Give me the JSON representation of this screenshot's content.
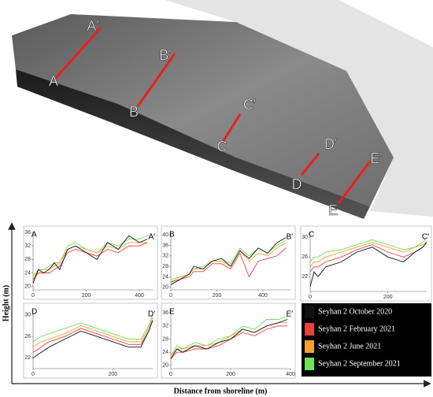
{
  "image_labels": [
    "A",
    "A′",
    "B",
    "B′",
    "C",
    "C′",
    "D",
    "D′",
    "E",
    "E′"
  ],
  "axes": {
    "y_label": "Height (m)",
    "x_label": "Distance from shoreline (m)"
  },
  "legend": [
    {
      "name": "Seyhan 2 October 2020",
      "color": "#111111"
    },
    {
      "name": "Seyhan 2 February 2021",
      "color": "#e8403a"
    },
    {
      "name": "Seyhan 2 June 2021",
      "color": "#f5a030"
    },
    {
      "name": "Seyhan 2 September 2021",
      "color": "#6ee05a"
    }
  ],
  "chart_data": [
    {
      "type": "line",
      "title": "A",
      "end_label": "A′",
      "x": [
        0,
        20,
        40,
        60,
        80,
        100,
        130,
        160,
        200,
        240,
        280,
        320,
        360,
        400,
        430
      ],
      "series": [
        {
          "values": [
            21,
            25,
            24,
            25,
            27,
            25,
            31,
            32,
            30,
            28,
            33,
            31,
            35,
            33,
            34
          ]
        },
        {
          "values": [
            22,
            24,
            24,
            24,
            25,
            26,
            30,
            31,
            30,
            29,
            31,
            30,
            32,
            32,
            33
          ]
        },
        {
          "values": [
            22,
            25,
            25,
            25,
            26,
            27,
            31,
            32,
            31,
            30,
            32,
            31,
            33,
            33,
            33
          ]
        },
        {
          "values": [
            23,
            25,
            25,
            26,
            27,
            27,
            32,
            33,
            31,
            30,
            33,
            32,
            34,
            34,
            35
          ]
        }
      ],
      "xlim": [
        0,
        450
      ],
      "xticks": [
        0,
        200,
        400
      ],
      "ylim": [
        19,
        36
      ],
      "yticks": [
        20,
        24,
        28,
        32,
        36
      ]
    },
    {
      "type": "line",
      "title": "B",
      "end_label": "B′",
      "x": [
        0,
        40,
        80,
        100,
        140,
        180,
        220,
        260,
        300,
        340,
        380,
        420,
        460,
        500
      ],
      "series": [
        {
          "values": [
            21,
            23,
            25,
            28,
            27,
            30,
            31,
            28,
            34,
            31,
            35,
            33,
            37,
            39
          ]
        },
        {
          "values": [
            22,
            23,
            24,
            26,
            26,
            29,
            29,
            27,
            33,
            24,
            30,
            31,
            32,
            35
          ]
        },
        {
          "values": [
            22,
            24,
            25,
            27,
            27,
            30,
            30,
            28,
            34,
            30,
            33,
            32,
            35,
            37
          ]
        },
        {
          "values": [
            23,
            24,
            25,
            27,
            28,
            30,
            31,
            29,
            35,
            32,
            35,
            33,
            36,
            38
          ]
        }
      ],
      "xlim": [
        0,
        520
      ],
      "xticks": [
        0,
        200,
        400
      ],
      "ylim": [
        19,
        41
      ],
      "yticks": [
        20,
        24,
        28,
        32,
        36,
        40
      ]
    },
    {
      "type": "line",
      "title": "C",
      "end_label": "C′",
      "x": [
        0,
        10,
        20,
        40,
        80,
        120,
        160,
        200,
        240,
        270,
        290,
        300
      ],
      "series": [
        {
          "values": [
            20,
            23,
            22,
            24,
            25,
            27,
            28,
            26,
            25,
            27,
            28,
            29
          ]
        },
        {
          "values": [
            23,
            24,
            24,
            25,
            26,
            27.5,
            28.5,
            27,
            26,
            27,
            28,
            29
          ]
        },
        {
          "values": [
            24,
            25,
            25,
            26,
            27,
            28,
            29,
            28,
            27,
            28,
            28.5,
            29
          ]
        },
        {
          "values": [
            25,
            26,
            26,
            27,
            27.5,
            28.5,
            29.5,
            28.5,
            27.5,
            28,
            29,
            30
          ]
        }
      ],
      "xlim": [
        0,
        300
      ],
      "xticks": [
        0,
        200
      ],
      "ylim": [
        19,
        31
      ],
      "yticks": [
        22,
        26,
        30
      ]
    },
    {
      "type": "line",
      "title": "D",
      "end_label": "D′",
      "x": [
        0,
        20,
        40,
        80,
        120,
        160,
        200,
        240,
        270,
        290,
        300
      ],
      "series": [
        {
          "values": [
            22,
            23,
            24,
            25.5,
            27,
            26,
            25,
            24,
            24,
            27,
            29
          ]
        },
        {
          "values": [
            23,
            24,
            25,
            26,
            27.5,
            26.5,
            25.5,
            24.5,
            24.5,
            27,
            29
          ]
        },
        {
          "values": [
            24,
            25,
            25.5,
            26.5,
            28,
            27,
            26,
            25,
            25,
            27.5,
            29.5
          ]
        },
        {
          "values": [
            25,
            26,
            26.5,
            27.5,
            28.5,
            27.5,
            26.5,
            25.5,
            25.5,
            28,
            30
          ]
        }
      ],
      "xlim": [
        0,
        300
      ],
      "xticks": [
        0,
        200
      ],
      "ylim": [
        20,
        31
      ],
      "yticks": [
        22,
        26,
        30
      ]
    },
    {
      "type": "line",
      "title": "E",
      "end_label": "E′",
      "x": [
        0,
        20,
        40,
        80,
        120,
        160,
        200,
        240,
        280,
        320,
        360,
        390
      ],
      "series": [
        {
          "values": [
            22,
            25,
            24,
            26,
            25,
            27,
            28,
            31,
            30,
            32,
            33,
            34
          ]
        },
        {
          "values": [
            22,
            24,
            24,
            25,
            25,
            26,
            28,
            30,
            29,
            31,
            32,
            32
          ]
        },
        {
          "values": [
            23,
            25,
            25,
            26,
            26,
            27,
            29,
            31,
            30,
            32,
            33,
            33
          ]
        },
        {
          "values": [
            23,
            26,
            25,
            27,
            26,
            28,
            29,
            32,
            31,
            34,
            34,
            35
          ]
        }
      ],
      "xlim": [
        0,
        400
      ],
      "xticks": [
        0,
        200,
        400
      ],
      "ylim": [
        19,
        37
      ],
      "yticks": [
        20,
        24,
        28,
        32,
        36
      ]
    }
  ]
}
